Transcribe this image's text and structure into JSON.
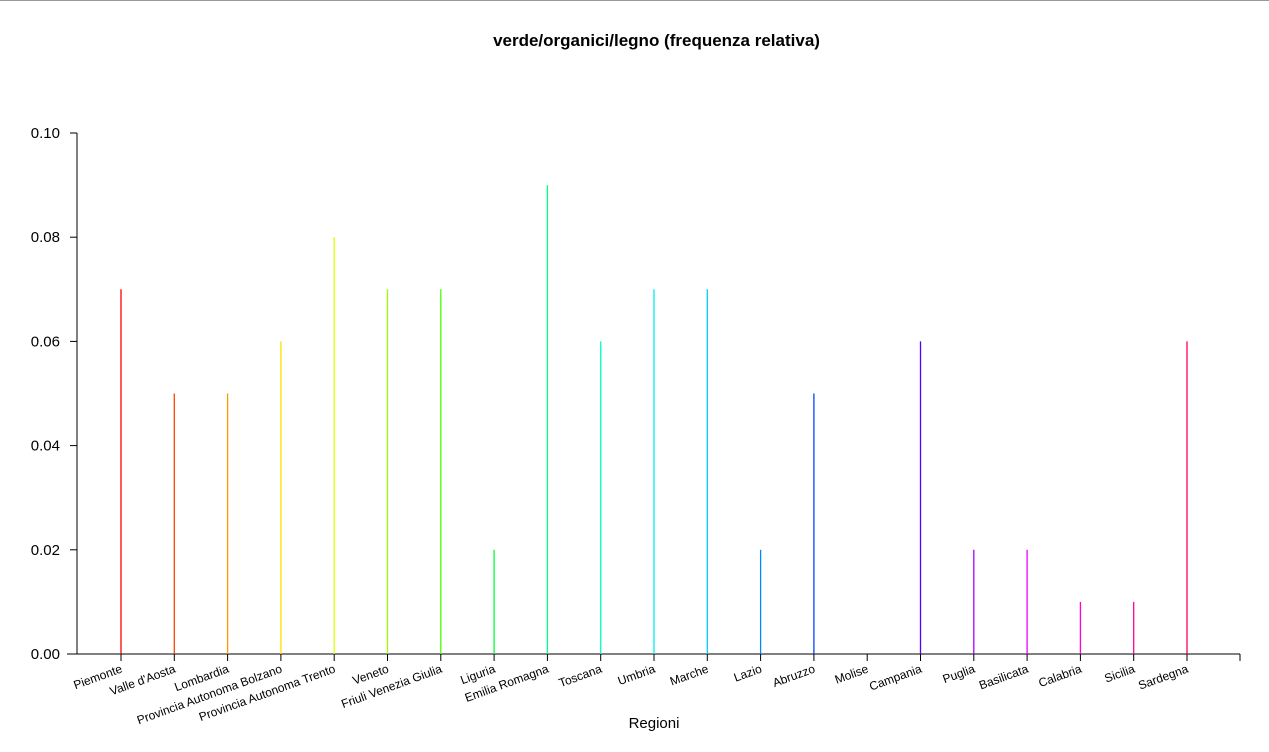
{
  "chart_data": {
    "type": "bar",
    "title": "verde/organici/legno  (frequenza relativa)",
    "xlabel": "Regioni",
    "ylabel": "",
    "ylim": [
      0,
      0.1
    ],
    "yticks": [
      "0.00",
      "0.02",
      "0.04",
      "0.06",
      "0.08",
      "0.10"
    ],
    "grid": false,
    "categories": [
      "Piemonte",
      "Valle d'Aosta",
      "Lombardia",
      "Provincia Autonoma Bolzano",
      "Provincia Autonoma Trento",
      "Veneto",
      "Friuli Venezia Giulia",
      "Liguria",
      "Emilia Romagna",
      "Toscana",
      "Umbria",
      "Marche",
      "Lazio",
      "Abruzzo",
      "Molise",
      "Campania",
      "Puglia",
      "Basilicata",
      "Calabria",
      "Sicilia",
      "Sardegna"
    ],
    "values": [
      0.07,
      0.05,
      0.05,
      0.06,
      0.08,
      0.07,
      0.07,
      0.02,
      0.09,
      0.06,
      0.07,
      0.07,
      0.02,
      0.05,
      0.0,
      0.06,
      0.02,
      0.02,
      0.01,
      0.01,
      0.06
    ],
    "colors": [
      "#ff0000",
      "#ff4000",
      "#ff9900",
      "#ffdd00",
      "#e0ff00",
      "#99ff00",
      "#44ff00",
      "#00ff33",
      "#00ff88",
      "#00ffcc",
      "#00eeee",
      "#00ccff",
      "#0088ff",
      "#0044ff",
      "#1100ff",
      "#5500ff",
      "#aa00ff",
      "#ee00ff",
      "#ff00dd",
      "#ff0099",
      "#ff0055"
    ]
  }
}
